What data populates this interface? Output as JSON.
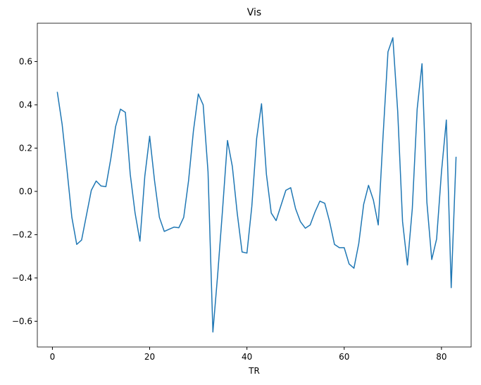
{
  "chart_data": {
    "type": "line",
    "title": "Vis",
    "xlabel": "TR",
    "x": [
      1,
      2,
      3,
      4,
      5,
      6,
      7,
      8,
      9,
      10,
      11,
      12,
      13,
      14,
      15,
      16,
      17,
      18,
      19,
      20,
      21,
      22,
      23,
      24,
      25,
      26,
      27,
      28,
      29,
      30,
      31,
      32,
      33,
      34,
      35,
      36,
      37,
      38,
      39,
      40,
      41,
      42,
      43,
      44,
      45,
      46,
      47,
      48,
      49,
      50,
      51,
      52,
      53,
      54,
      55,
      56,
      57,
      58,
      59,
      60,
      61,
      62,
      63,
      64,
      65,
      66,
      67,
      68,
      69,
      70,
      71,
      72,
      73,
      74,
      75,
      76,
      77,
      78,
      79,
      80,
      81,
      82,
      83
    ],
    "series": [
      {
        "color": "#1f77b4",
        "values": [
          0.46,
          0.31,
          0.1,
          -0.12,
          -0.245,
          -0.225,
          -0.11,
          0.005,
          0.048,
          0.025,
          0.022,
          0.15,
          0.3,
          0.38,
          0.365,
          0.08,
          -0.1,
          -0.23,
          0.07,
          0.255,
          0.05,
          -0.12,
          -0.185,
          -0.175,
          -0.165,
          -0.168,
          -0.12,
          0.05,
          0.28,
          0.45,
          0.4,
          0.09,
          -0.65,
          -0.38,
          -0.08,
          0.235,
          0.115,
          -0.1,
          -0.28,
          -0.285,
          -0.07,
          0.245,
          0.405,
          0.08,
          -0.1,
          -0.135,
          -0.065,
          0.005,
          0.017,
          -0.08,
          -0.14,
          -0.17,
          -0.155,
          -0.095,
          -0.045,
          -0.055,
          -0.14,
          -0.245,
          -0.26,
          -0.26,
          -0.335,
          -0.355,
          -0.24,
          -0.06,
          0.028,
          -0.04,
          -0.155,
          0.26,
          0.645,
          0.71,
          0.37,
          -0.14,
          -0.34,
          -0.08,
          0.38,
          0.59,
          -0.05,
          -0.315,
          -0.22,
          0.09,
          0.33,
          -0.445,
          0.16
        ]
      }
    ],
    "xlim": [
      -3.1,
      86.1
    ],
    "xticks": [
      0,
      20,
      40,
      60,
      80
    ],
    "ylim": [
      -0.719,
      0.777
    ],
    "yticks": [
      {
        "value": -0.6,
        "label": "−0.6"
      },
      {
        "value": -0.4,
        "label": "−0.4"
      },
      {
        "value": -0.2,
        "label": "−0.2"
      },
      {
        "value": 0,
        "label": "0.0"
      },
      {
        "value": 0.2,
        "label": "0.2"
      },
      {
        "value": 0.4,
        "label": "0.4"
      },
      {
        "value": 0.6,
        "label": "0.6"
      }
    ],
    "grid": false
  }
}
